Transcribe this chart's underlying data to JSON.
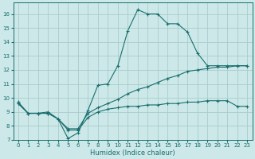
{
  "xlabel": "Humidex (Indice chaleur)",
  "background_color": "#cce8e8",
  "grid_color": "#aacccc",
  "line_color": "#1a6e6e",
  "xlim": [
    -0.5,
    23.5
  ],
  "ylim": [
    7,
    16.8
  ],
  "yticks": [
    7,
    8,
    9,
    10,
    11,
    12,
    13,
    14,
    15,
    16
  ],
  "xticks": [
    0,
    1,
    2,
    3,
    4,
    5,
    6,
    7,
    8,
    9,
    10,
    11,
    12,
    13,
    14,
    15,
    16,
    17,
    18,
    19,
    20,
    21,
    22,
    23
  ],
  "series1_x": [
    0,
    1,
    2,
    3,
    4,
    5,
    6,
    7,
    8,
    9,
    10,
    11,
    12,
    13,
    14,
    15,
    16,
    17,
    18,
    19,
    20,
    21,
    22,
    23
  ],
  "series1_y": [
    9.7,
    8.9,
    8.9,
    9.0,
    8.5,
    7.1,
    7.5,
    9.1,
    10.9,
    11.0,
    12.3,
    14.8,
    16.3,
    16.0,
    16.0,
    15.3,
    15.3,
    14.7,
    13.2,
    12.3,
    12.3,
    12.3,
    12.3,
    12.3
  ],
  "series2_x": [
    0,
    1,
    2,
    3,
    4,
    5,
    6,
    7,
    8,
    9,
    10,
    11,
    12,
    13,
    14,
    15,
    16,
    17,
    18,
    19,
    20,
    21,
    22,
    23
  ],
  "series2_y": [
    9.6,
    8.9,
    8.9,
    8.9,
    8.5,
    7.8,
    7.8,
    8.9,
    9.3,
    9.6,
    9.9,
    10.3,
    10.6,
    10.8,
    11.1,
    11.4,
    11.6,
    11.9,
    12.0,
    12.1,
    12.2,
    12.2,
    12.3,
    12.3
  ],
  "series3_x": [
    0,
    1,
    2,
    3,
    4,
    5,
    6,
    7,
    8,
    9,
    10,
    11,
    12,
    13,
    14,
    15,
    16,
    17,
    18,
    19,
    20,
    21,
    22,
    23
  ],
  "series3_y": [
    9.6,
    8.9,
    8.9,
    8.9,
    8.5,
    7.7,
    7.7,
    8.6,
    9.0,
    9.2,
    9.3,
    9.4,
    9.4,
    9.5,
    9.5,
    9.6,
    9.6,
    9.7,
    9.7,
    9.8,
    9.8,
    9.8,
    9.4,
    9.4
  ],
  "marker": "+",
  "markersize": 2.5,
  "linewidth": 0.8,
  "tick_fontsize": 5.0,
  "xlabel_fontsize": 6.0
}
